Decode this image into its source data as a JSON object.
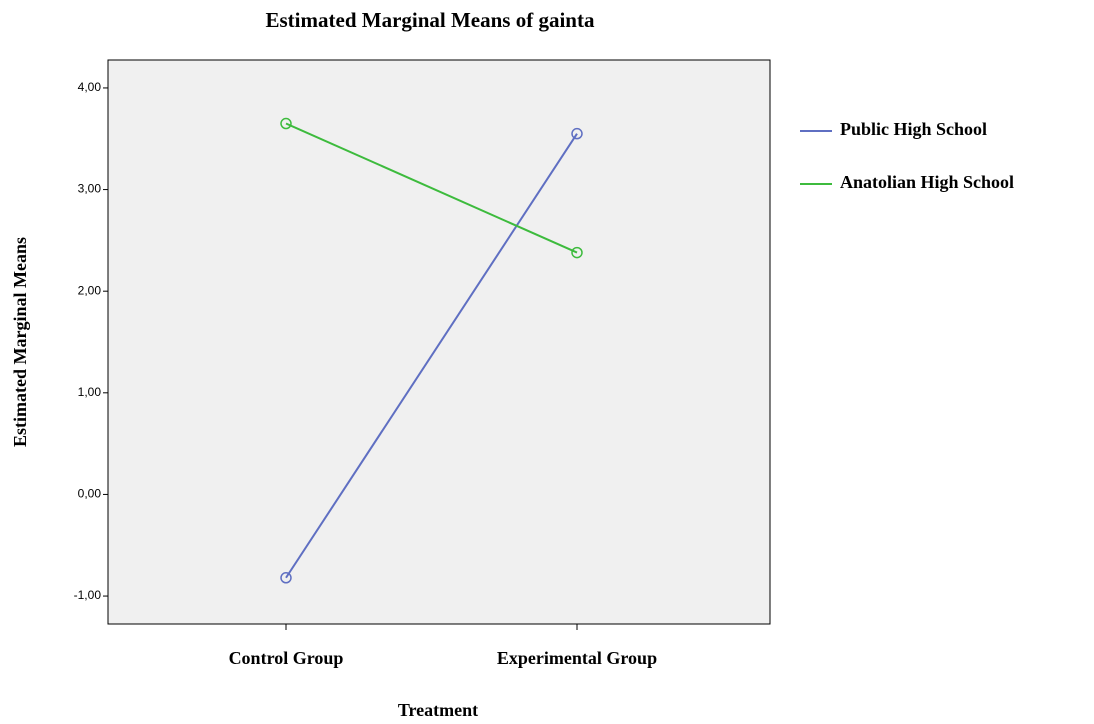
{
  "chart_data": {
    "type": "line",
    "title": "Estimated Marginal Means of gainta",
    "x_label": "Treatment",
    "y_label": "Estimated Marginal Means",
    "categories": [
      "Control Group",
      "Experimental Group"
    ],
    "series": [
      {
        "name": "Public High School",
        "color": "#5f6fc2",
        "values": [
          -0.82,
          3.55
        ]
      },
      {
        "name": "Anatolian High School",
        "color": "#3dbb3d",
        "values": [
          3.65,
          2.38
        ]
      }
    ],
    "ylim": [
      -1.275,
      4.275
    ],
    "yticks": [
      {
        "value": -1,
        "label": "-1,00"
      },
      {
        "value": 0,
        "label": "0,00"
      },
      {
        "value": 1,
        "label": "1,00"
      },
      {
        "value": 2,
        "label": "2,00"
      },
      {
        "value": 3,
        "label": "3,00"
      },
      {
        "value": 4,
        "label": "4,00"
      }
    ],
    "grid": false,
    "legend": "right"
  }
}
